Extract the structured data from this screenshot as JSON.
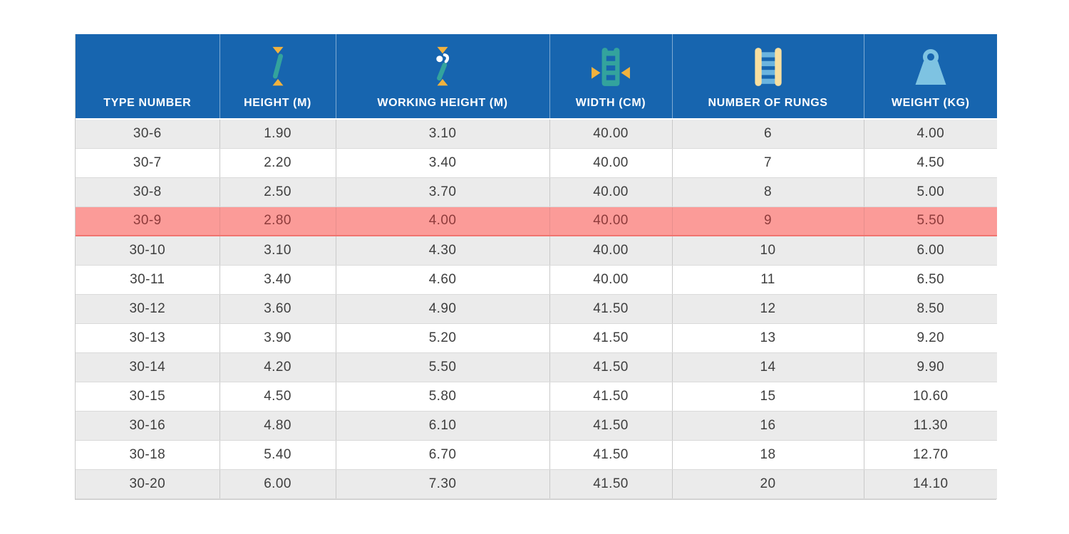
{
  "table": {
    "columns": [
      {
        "label": "TYPE NUMBER",
        "icon": null
      },
      {
        "label": "HEIGHT (M)",
        "icon": "height-icon"
      },
      {
        "label": "WORKING HEIGHT (M)",
        "icon": "working-height-icon"
      },
      {
        "label": "WIDTH (CM)",
        "icon": "width-icon"
      },
      {
        "label": "NUMBER OF RUNGS",
        "icon": "rungs-icon"
      },
      {
        "label": "WEIGHT (KG)",
        "icon": "weight-icon"
      }
    ],
    "rows": [
      [
        "30-6",
        "1.90",
        "3.10",
        "40.00",
        "6",
        "4.00"
      ],
      [
        "30-7",
        "2.20",
        "3.40",
        "40.00",
        "7",
        "4.50"
      ],
      [
        "30-8",
        "2.50",
        "3.70",
        "40.00",
        "8",
        "5.00"
      ],
      [
        "30-9",
        "2.80",
        "4.00",
        "40.00",
        "9",
        "5.50"
      ],
      [
        "30-10",
        "3.10",
        "4.30",
        "40.00",
        "10",
        "6.00"
      ],
      [
        "30-11",
        "3.40",
        "4.60",
        "40.00",
        "11",
        "6.50"
      ],
      [
        "30-12",
        "3.60",
        "4.90",
        "41.50",
        "12",
        "8.50"
      ],
      [
        "30-13",
        "3.90",
        "5.20",
        "41.50",
        "13",
        "9.20"
      ],
      [
        "30-14",
        "4.20",
        "5.50",
        "41.50",
        "14",
        "9.90"
      ],
      [
        "30-15",
        "4.50",
        "5.80",
        "41.50",
        "15",
        "10.60"
      ],
      [
        "30-16",
        "4.80",
        "6.10",
        "41.50",
        "16",
        "11.30"
      ],
      [
        "30-18",
        "5.40",
        "6.70",
        "41.50",
        "18",
        "12.70"
      ],
      [
        "30-20",
        "6.00",
        "7.30",
        "41.50",
        "20",
        "14.10"
      ]
    ],
    "highlighted_row": "30-9",
    "colors": {
      "header_bg": "#1765AF",
      "row_alt_bg": "#EBEBEB",
      "row_bg": "#FFFFFF",
      "highlight_bg": "#FB9B98",
      "highlight_text": "#8E3B3B",
      "highlight_border": "#F07470",
      "cell_text": "#3E3E3E",
      "icon_teal": "#33A39D",
      "icon_yellow": "#F2B23E",
      "icon_cream": "#F8DFA0",
      "icon_lightblue": "#7EC3E2",
      "icon_rungblue": "#6BB4DF"
    }
  }
}
